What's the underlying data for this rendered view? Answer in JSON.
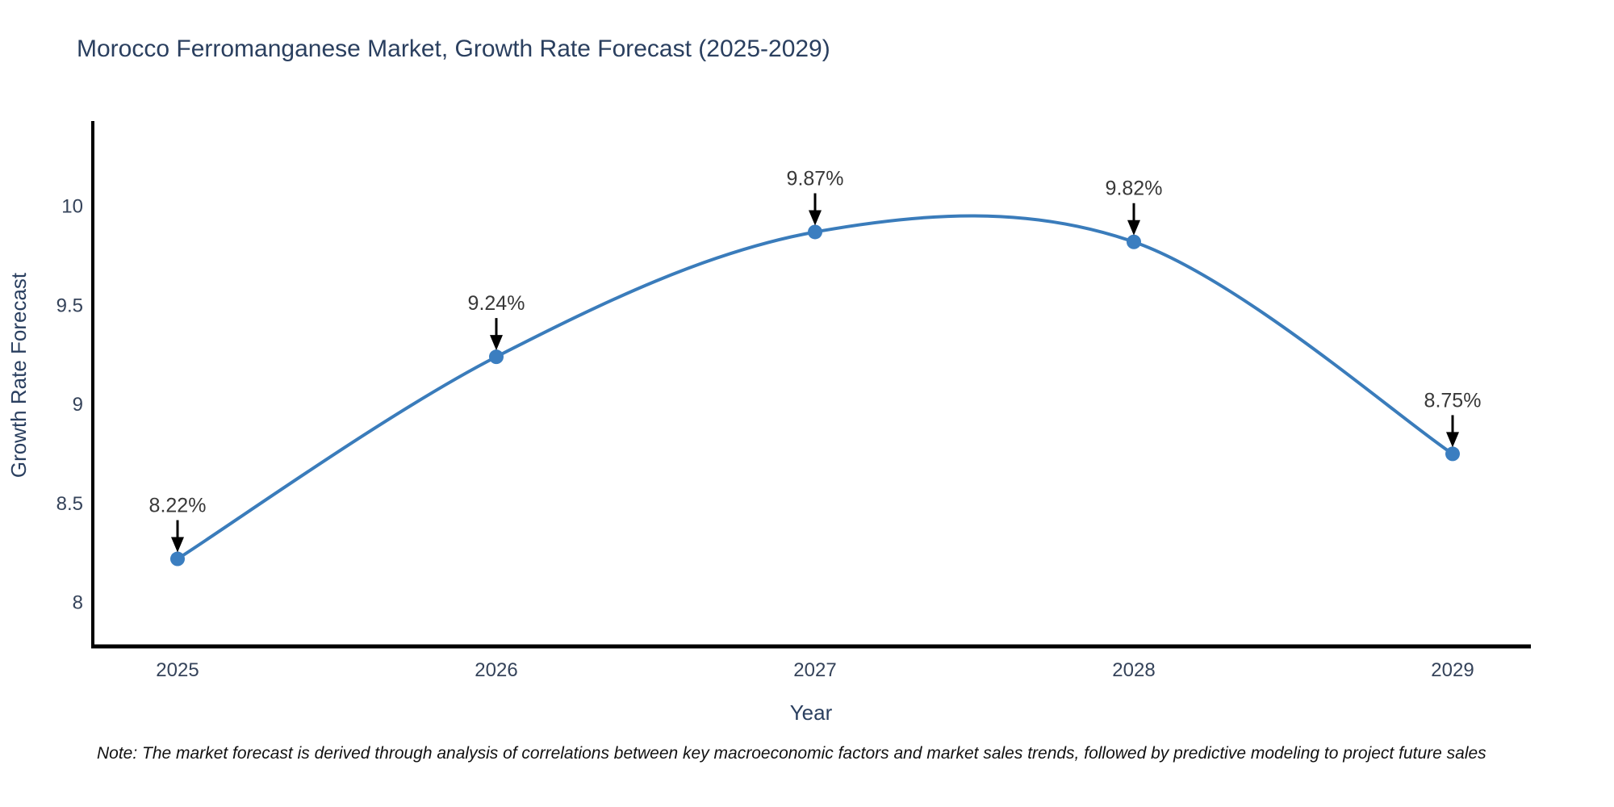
{
  "title": "Morocco Ferromanganese Market, Growth Rate Forecast (2025-2029)",
  "note": "Note: The market forecast is derived through analysis of correlations between key macroeconomic factors and market sales trends, followed by predictive modeling to project future sales",
  "chart_data": {
    "type": "line",
    "title": "Morocco Ferromanganese Market, Growth Rate Forecast (2025-2029)",
    "xlabel": "Year",
    "ylabel": "Growth Rate Forecast",
    "categories": [
      "2025",
      "2026",
      "2027",
      "2028",
      "2029"
    ],
    "values": [
      8.22,
      9.24,
      9.87,
      9.82,
      8.75
    ],
    "point_labels": [
      "8.22%",
      "9.24%",
      "9.87%",
      "9.82%",
      "8.75%"
    ],
    "yticks": [
      {
        "value": 8,
        "label": "8"
      },
      {
        "value": 8.5,
        "label": "8.5"
      },
      {
        "value": 9,
        "label": "9"
      },
      {
        "value": 9.5,
        "label": "9.5"
      },
      {
        "value": 10,
        "label": "10"
      }
    ],
    "ylim": [
      7.77,
      10.43
    ],
    "line_shape": "spline",
    "grid": false,
    "legend": "none",
    "colors": {
      "line": "#3a7cbb",
      "marker": "#3b7ec0",
      "axis": "#000000",
      "annotation_arrow": "#000000",
      "annotation_text": "#383838",
      "title_text": "#2a3f5f",
      "tick_text": "#35435a"
    }
  }
}
